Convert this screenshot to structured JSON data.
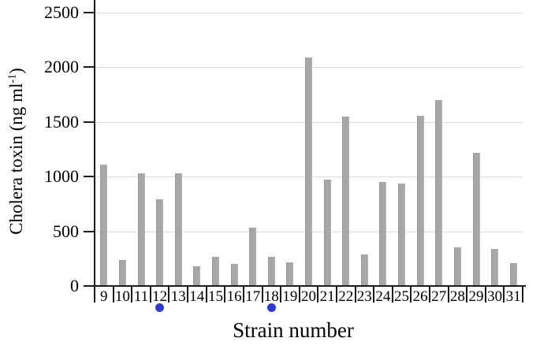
{
  "chart_data": {
    "type": "bar",
    "title": "",
    "xlabel": "Strain number",
    "ylabel": "Cholera toxin (ng ml-1)",
    "ylabel_parts": {
      "prefix": "Cholera toxin (ng ml",
      "superscript": "-1",
      "suffix": ")"
    },
    "categories": [
      "9",
      "10",
      "11",
      "12",
      "13",
      "14",
      "15",
      "16",
      "17",
      "18",
      "19",
      "20",
      "21",
      "22",
      "23",
      "24",
      "25",
      "26",
      "27",
      "28",
      "29",
      "30",
      "31"
    ],
    "values": [
      1110,
      240,
      1030,
      790,
      1030,
      180,
      270,
      200,
      530,
      270,
      215,
      2090,
      970,
      1550,
      290,
      950,
      935,
      1560,
      1700,
      355,
      1215,
      340,
      210
    ],
    "ylim": [
      0,
      2500
    ],
    "yticks": [
      0,
      500,
      1000,
      1500,
      2000,
      2500
    ],
    "grid": "horizontal",
    "legend": "none",
    "flagged_strains": [
      "12",
      "18"
    ],
    "colors": {
      "bar": "#a7a7a7",
      "bar_edge": "#9a9a9a",
      "gridline": "#dcdcdc",
      "axis": "#1c1c1c",
      "flag_dot": "#2d3ad8",
      "background": "#ffffff",
      "text": "#000000"
    }
  }
}
